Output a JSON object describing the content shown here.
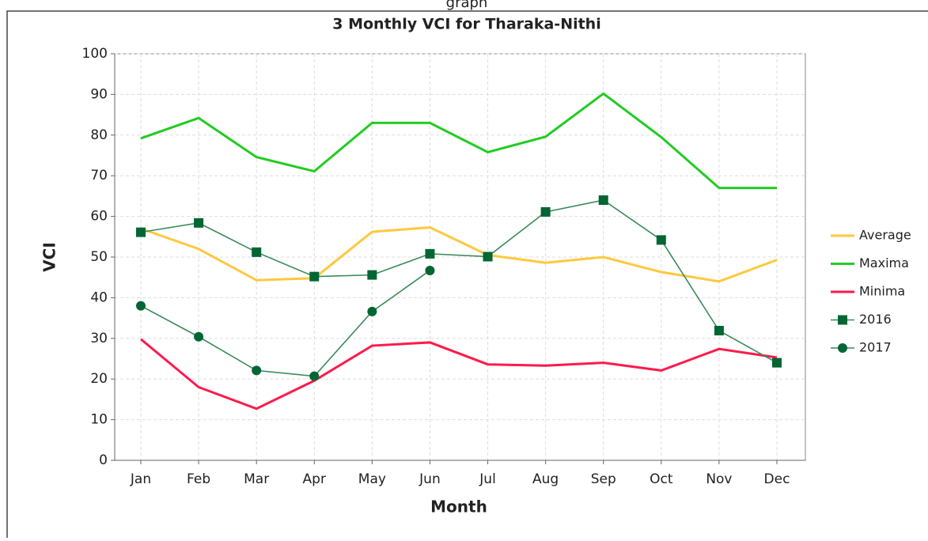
{
  "header": "graph",
  "chart_data": {
    "type": "line",
    "title": "3 Monthly VCI for Tharaka-Nithi",
    "x_label": "Month",
    "y_label": "VCI",
    "categories": [
      "Jan",
      "Feb",
      "Mar",
      "Apr",
      "May",
      "Jun",
      "Jul",
      "Aug",
      "Sep",
      "Oct",
      "Nov",
      "Dec"
    ],
    "ylim": [
      0,
      100
    ],
    "yticks": [
      0,
      10,
      20,
      30,
      40,
      50,
      60,
      70,
      80,
      90,
      100
    ],
    "grid": true,
    "legend": "right",
    "series": [
      {
        "name": "Average",
        "color": "#ffc83d",
        "values": [
          57,
          52,
          44.3,
          44.8,
          56.2,
          57.3,
          50.5,
          48.6,
          50,
          46.3,
          44,
          49.3
        ]
      },
      {
        "name": "Maxima",
        "color": "#22cc22",
        "values": [
          79.2,
          84.2,
          74.6,
          71.1,
          83,
          83,
          75.8,
          79.6,
          90.2,
          79.5,
          67,
          67
        ]
      },
      {
        "name": "Minima",
        "color": "#ff1a4b",
        "values": [
          29.8,
          18,
          12.7,
          19.6,
          28.2,
          29,
          23.6,
          23.3,
          24,
          22.1,
          27.4,
          25.3
        ]
      },
      {
        "name": "2016",
        "color": "#006633",
        "marker": "square",
        "values": [
          56.1,
          58.4,
          51.2,
          45.2,
          45.6,
          50.8,
          50.1,
          61.1,
          64,
          54.2,
          31.9,
          24
        ]
      },
      {
        "name": "2017",
        "color": "#006633",
        "marker": "circle",
        "values": [
          38,
          30.4,
          22.1,
          20.7,
          36.6,
          46.7,
          null,
          null,
          null,
          null,
          null,
          null
        ]
      }
    ]
  }
}
